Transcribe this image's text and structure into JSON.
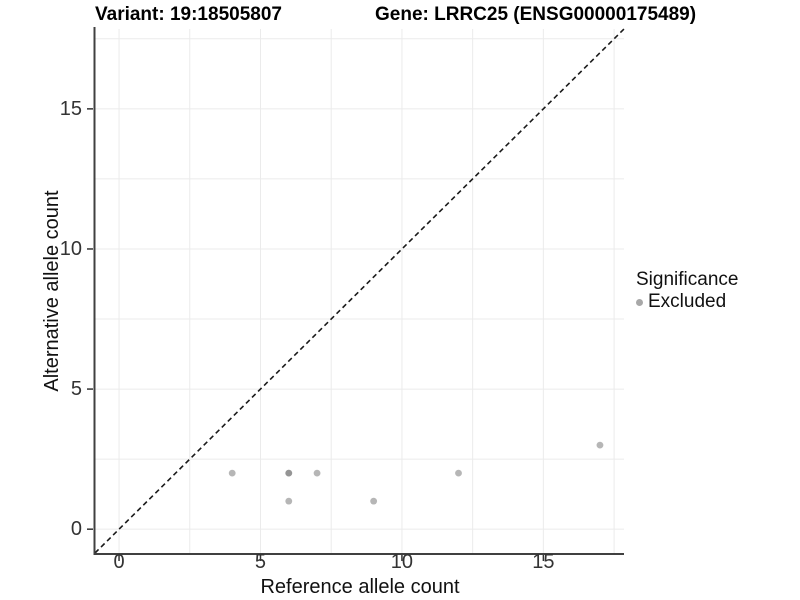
{
  "chart_data": {
    "type": "scatter",
    "titles": {
      "left": "Variant: 19:18505807",
      "right": "Gene: LRRC25 (ENSG00000175489)"
    },
    "xlabel": "Reference allele count",
    "ylabel": "Alternative allele count",
    "xlim": [
      -0.85,
      17.85
    ],
    "ylim": [
      -0.85,
      17.85
    ],
    "x_ticks": [
      0,
      5,
      10,
      15
    ],
    "y_ticks": [
      0,
      5,
      10,
      15
    ],
    "grid": {
      "start": 0,
      "step": 2.5,
      "end": 17.5,
      "on": true
    },
    "identity_line": {
      "style": "dashed",
      "equation": "y = x",
      "from": [
        -0.85,
        -0.85
      ],
      "to": [
        17.85,
        17.85
      ]
    },
    "series": [
      {
        "name": "Excluded",
        "points": [
          [
            4,
            2
          ],
          [
            6,
            2
          ],
          [
            6,
            2
          ],
          [
            7,
            2
          ],
          [
            6,
            1
          ],
          [
            9,
            1
          ],
          [
            12,
            2
          ],
          [
            17,
            3
          ]
        ],
        "note": "point (6,2) appears darker due to two overlapping points"
      }
    ],
    "legend": {
      "title": "Significance",
      "position": "right",
      "entries": [
        {
          "label": "Excluded",
          "color": "#a8a8a8"
        }
      ]
    }
  },
  "colors": {
    "background": "#ffffff",
    "grid": "#ebebeb",
    "axis_line": "#404040",
    "tick": "#333333",
    "dashed_line": "#1a1a1a",
    "point": "#7a7a7a",
    "point_opacity": 0.55
  }
}
